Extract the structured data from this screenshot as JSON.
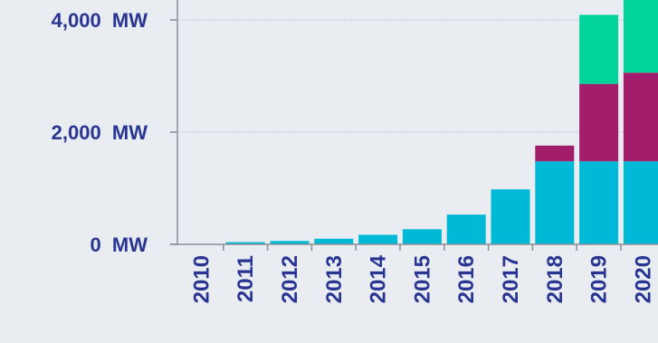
{
  "chart_data": {
    "type": "bar",
    "stacked": true,
    "categories": [
      "2010",
      "2011",
      "2012",
      "2013",
      "2014",
      "2015",
      "2016",
      "2017",
      "2018",
      "2019",
      "2020"
    ],
    "series": [
      {
        "values": [
          0,
          40,
          60,
          100,
          170,
          270,
          530,
          980,
          1480,
          1480,
          1480
        ],
        "color": "#00b9d6"
      },
      {
        "values": [
          0,
          0,
          0,
          0,
          0,
          0,
          0,
          0,
          280,
          1380,
          1580
        ],
        "color": "#a31e6a"
      },
      {
        "values": [
          0,
          0,
          0,
          0,
          0,
          0,
          0,
          0,
          0,
          1230,
          1350
        ],
        "color": "#00d49a"
      }
    ],
    "y_ticks": [
      {
        "value": 0,
        "label": "0  MW"
      },
      {
        "value": 2000,
        "label": "2,000  MW"
      },
      {
        "value": 4000,
        "label": "4,000  MW"
      }
    ],
    "ylim": [
      0,
      4400
    ],
    "grid": true,
    "text_color": "#283593",
    "axis_color": "#8a8f96"
  }
}
